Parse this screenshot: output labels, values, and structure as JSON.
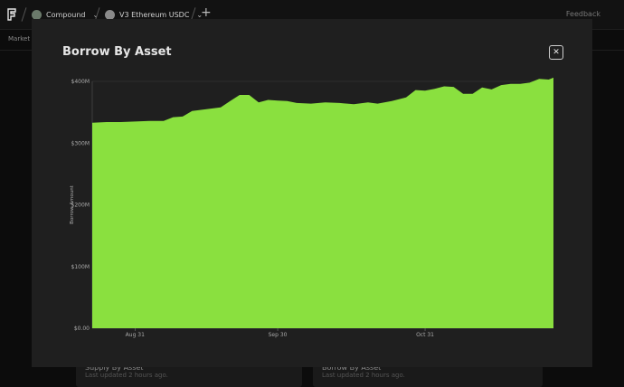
{
  "topbar": {
    "breadcrumbs": [
      {
        "label": "Compound",
        "icon": "compound-logo-icon"
      },
      {
        "label": "V3 Ethereum USDC",
        "icon": "ethereum-icon"
      }
    ],
    "feedback_label": "Feedback"
  },
  "subnav": {
    "label": "Market"
  },
  "background_cards": [
    {
      "title": "Supply By Asset",
      "updated": "Last updated 2 hours ago."
    },
    {
      "title": "Borrow By Asset",
      "updated": "Last updated 2 hours ago."
    }
  ],
  "modal": {
    "title": "Borrow By Asset",
    "close_label": "✕"
  },
  "chart_data": {
    "type": "area",
    "ylabel": "Borrow Amount",
    "color": "#8ae03f",
    "ylim": [
      0,
      400
    ],
    "yticks": [
      0,
      100,
      200,
      300,
      400
    ],
    "ytick_labels": [
      "$0.00",
      "$100M",
      "$200M",
      "$300M",
      "$400M"
    ],
    "x_start": "2023-08-22",
    "x_end": "2023-11-27",
    "xtick_labels": [
      {
        "date": "2023-08-31",
        "label": "Aug 31"
      },
      {
        "date": "2023-09-30",
        "label": "Sep 30"
      },
      {
        "date": "2023-10-31",
        "label": "Oct 31"
      }
    ],
    "series": [
      {
        "points": [
          [
            "2023-08-22",
            333
          ],
          [
            "2023-08-25",
            334
          ],
          [
            "2023-08-28",
            334
          ],
          [
            "2023-08-31",
            335
          ],
          [
            "2023-09-03",
            336
          ],
          [
            "2023-09-06",
            336
          ],
          [
            "2023-09-08",
            342
          ],
          [
            "2023-09-10",
            343
          ],
          [
            "2023-09-12",
            352
          ],
          [
            "2023-09-15",
            355
          ],
          [
            "2023-09-18",
            358
          ],
          [
            "2023-09-20",
            368
          ],
          [
            "2023-09-22",
            378
          ],
          [
            "2023-09-24",
            378
          ],
          [
            "2023-09-26",
            366
          ],
          [
            "2023-09-28",
            370
          ],
          [
            "2023-09-30",
            369
          ],
          [
            "2023-10-02",
            368
          ],
          [
            "2023-10-04",
            365
          ],
          [
            "2023-10-07",
            364
          ],
          [
            "2023-10-10",
            366
          ],
          [
            "2023-10-13",
            365
          ],
          [
            "2023-10-16",
            363
          ],
          [
            "2023-10-19",
            366
          ],
          [
            "2023-10-21",
            364
          ],
          [
            "2023-10-24",
            368
          ],
          [
            "2023-10-27",
            374
          ],
          [
            "2023-10-29",
            386
          ],
          [
            "2023-10-31",
            385
          ],
          [
            "2023-11-02",
            388
          ],
          [
            "2023-11-04",
            392
          ],
          [
            "2023-11-06",
            391
          ],
          [
            "2023-11-08",
            380
          ],
          [
            "2023-11-10",
            380
          ],
          [
            "2023-11-12",
            390
          ],
          [
            "2023-11-14",
            387
          ],
          [
            "2023-11-16",
            394
          ],
          [
            "2023-11-18",
            396
          ],
          [
            "2023-11-20",
            396
          ],
          [
            "2023-11-22",
            398
          ],
          [
            "2023-11-24",
            404
          ],
          [
            "2023-11-26",
            403
          ],
          [
            "2023-11-27",
            406
          ]
        ]
      }
    ]
  }
}
